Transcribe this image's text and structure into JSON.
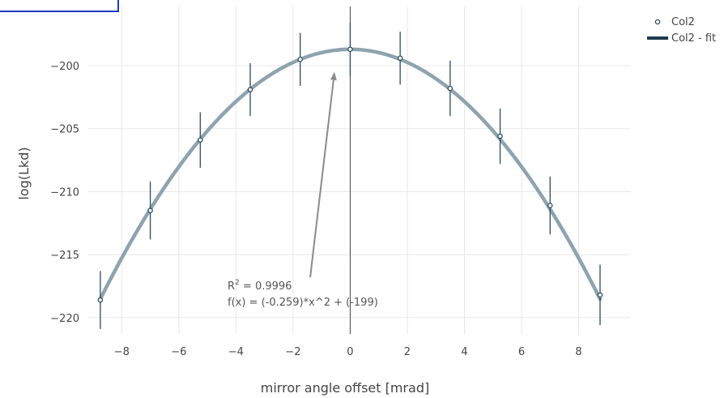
{
  "chart_data": {
    "type": "scatter",
    "xlabel": "mirror angle offset [mrad]",
    "ylabel": "log(Lkd)",
    "xlim": [
      -9.2,
      9.8
    ],
    "ylim": [
      -221.3,
      -195.3
    ],
    "x_ticks": [
      -8,
      -6,
      -4,
      -2,
      0,
      2,
      4,
      6,
      8
    ],
    "y_ticks": [
      -200,
      -205,
      -210,
      -215,
      -220
    ],
    "grid": true,
    "legend_placement": "top-right",
    "series": [
      {
        "name": "Col2",
        "mode": "markers",
        "color": "#2b4a5e",
        "x": [
          -8.75,
          -7.0,
          -5.25,
          -3.5,
          -1.75,
          0.0,
          1.75,
          3.5,
          5.25,
          7.0,
          8.75
        ],
        "y": [
          -218.6,
          -211.5,
          -205.9,
          -201.9,
          -199.5,
          -198.7,
          -199.4,
          -201.8,
          -205.6,
          -211.1,
          -218.2
        ],
        "error": [
          2.3,
          2.3,
          2.2,
          2.1,
          2.1,
          2.1,
          2.1,
          2.2,
          2.2,
          2.3,
          2.4
        ]
      },
      {
        "name": "Col2 - fit",
        "mode": "lines",
        "color": "#8ea3ae",
        "legend_color": "#1f3a52",
        "fit": {
          "a": -0.259,
          "b": 0.0,
          "c": -198.7
        }
      }
    ],
    "annotation": {
      "r2_base": "R",
      "r2_sup": "2",
      "r2_value": " = 0.9996",
      "formula": "f(x) = (-0.259)*x^2 + (-199)",
      "arrow_from": {
        "x": -1.4,
        "y": -216.8
      },
      "arrow_to": {
        "x": -0.55,
        "y": -200.5
      }
    }
  }
}
